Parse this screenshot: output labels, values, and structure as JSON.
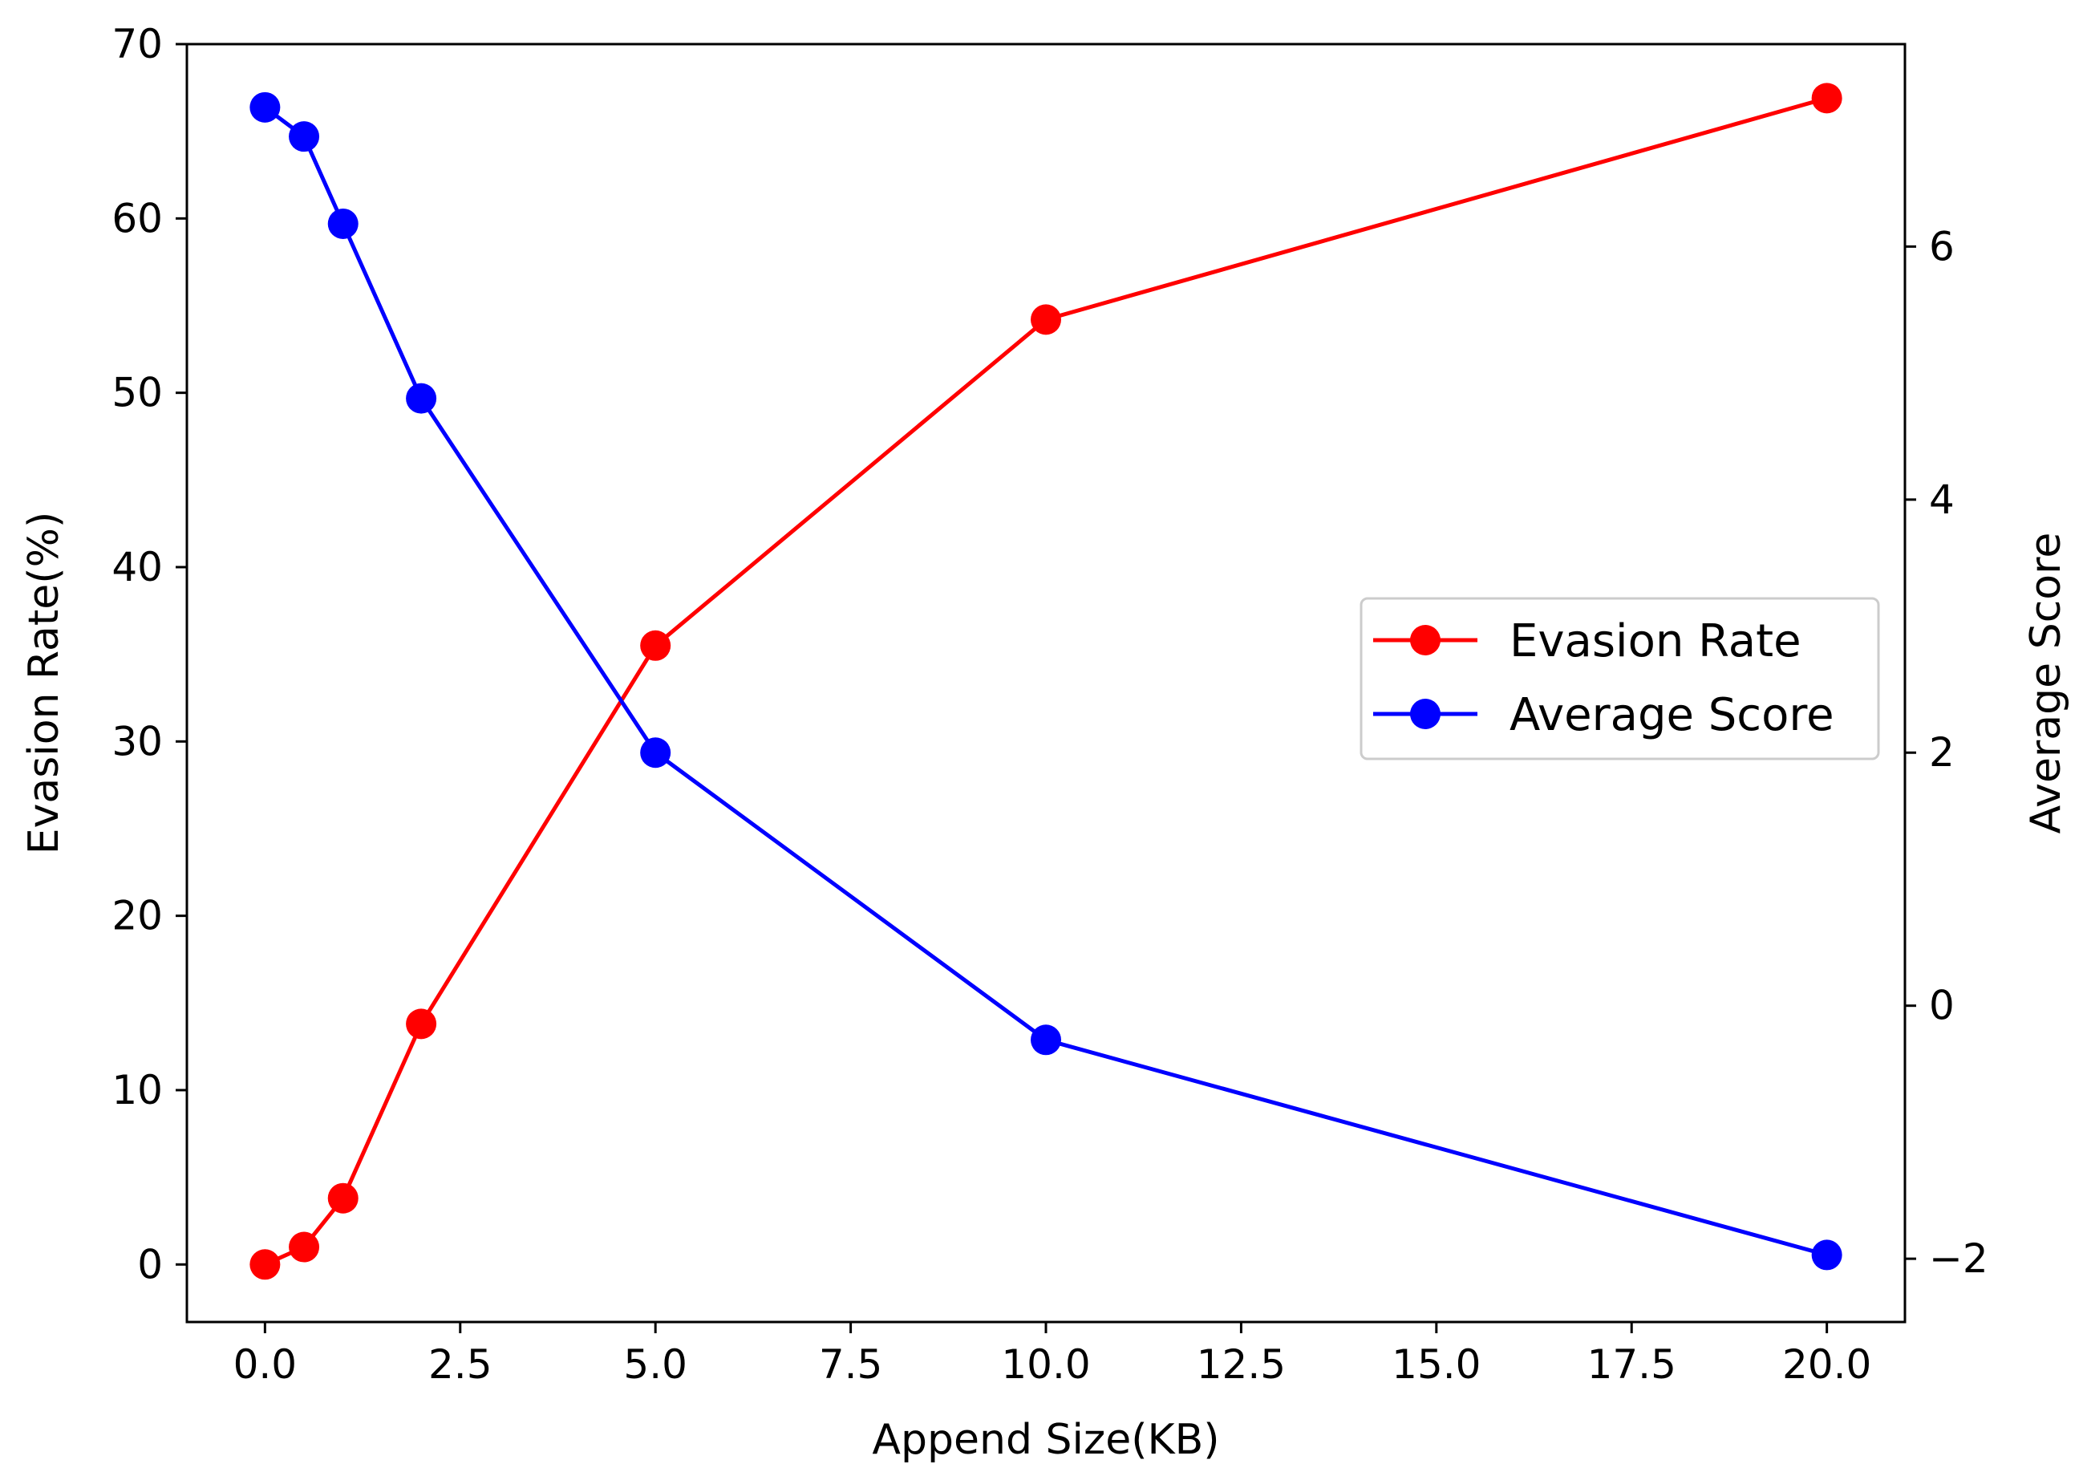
{
  "chart_data": {
    "type": "line",
    "title": "",
    "xlabel": "Append Size(KB)",
    "ylabel_left": "Evasion Rate(%)",
    "ylabel_right": "Average Score",
    "xlim": [
      -1,
      21
    ],
    "ylim_left": [
      -3.3,
      70
    ],
    "ylim_right": [
      -2.5,
      7.6
    ],
    "xticks": [
      0.0,
      2.5,
      5.0,
      7.5,
      10.0,
      12.5,
      15.0,
      17.5,
      20.0
    ],
    "xtick_labels": [
      "0.0",
      "2.5",
      "5.0",
      "7.5",
      "10.0",
      "12.5",
      "15.0",
      "17.5",
      "20.0"
    ],
    "yticks_left": [
      0,
      10,
      20,
      30,
      40,
      50,
      60,
      70
    ],
    "ytick_labels_left": [
      "0",
      "10",
      "20",
      "30",
      "40",
      "50",
      "60",
      "70"
    ],
    "yticks_right": [
      -2,
      0,
      2,
      4,
      6
    ],
    "ytick_labels_right": [
      "−2",
      "0",
      "2",
      "4",
      "6"
    ],
    "x": [
      0,
      0.5,
      1,
      2,
      5,
      10,
      20
    ],
    "series": [
      {
        "name": "Evasion Rate",
        "axis": "left",
        "color": "#ff0000",
        "values": [
          0,
          1,
          3.8,
          13.8,
          35.5,
          54.2,
          66.9
        ]
      },
      {
        "name": "Average Score",
        "axis": "right",
        "color": "#0000ff",
        "values": [
          7.1,
          6.87,
          6.18,
          4.8,
          2.0,
          -0.27,
          -1.97
        ]
      }
    ],
    "legend": {
      "location": "center-right",
      "entries": [
        "Evasion Rate",
        "Average Score"
      ]
    },
    "grid": false
  }
}
